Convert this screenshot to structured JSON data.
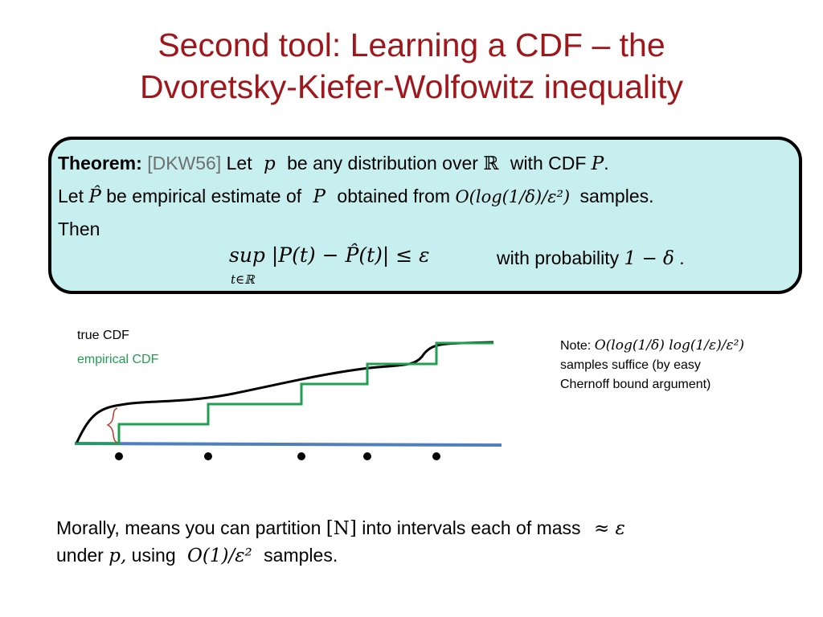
{
  "title": {
    "line1": "Second tool:  Learning a CDF – the",
    "line2": "Dvoretsky-Kiefer-Wolfowitz inequality"
  },
  "theorem": {
    "label": "Theorem:",
    "citation": "[DKW56]",
    "l1_a": "Let",
    "l1_p": "p",
    "l1_b": "be any distribution over",
    "l1_R": "ℝ",
    "l1_c": "with CDF",
    "l1_P": "P",
    "l1_dot": ".",
    "l2_a": "Let",
    "l2_Phat": "P̂",
    "l2_b": "be empirical estimate of",
    "l2_P": "P",
    "l2_c": "obtained from",
    "l2_O": "O(log(1/δ)/ε²)",
    "l2_d": "samples.",
    "l3": "Then",
    "formula": "sup |P(t) − P̂(t)| ≤ ε",
    "formula_sub": "t∈ℝ",
    "with_prob": "with probability",
    "prob": "1 − δ",
    "prob_dot": "."
  },
  "legend": {
    "true_cdf": "true CDF",
    "empirical_cdf": "empirical CDF"
  },
  "note": {
    "label": "Note:",
    "formula": "O(log(1/δ) log(1/ε)/ε²)",
    "line2": "samples suffice (by easy",
    "line3": "Chernoff bound argument)"
  },
  "bottom": {
    "l1_a": "Morally, means you can partition",
    "l1_N": "[N]",
    "l1_b": "into intervals each of mass",
    "l1_approx": "≈ ε",
    "l2_a": "under",
    "l2_p": "p,",
    "l2_b": "using",
    "l2_O": "O(1)/ε²",
    "l2_c": "samples."
  },
  "colors": {
    "title": "#a0171b",
    "box_fill": "#c8efef",
    "true_cdf": "#000000",
    "empirical_cdf": "#1fa050",
    "axis": "#4f7fbf",
    "brace": "#c0392b"
  }
}
